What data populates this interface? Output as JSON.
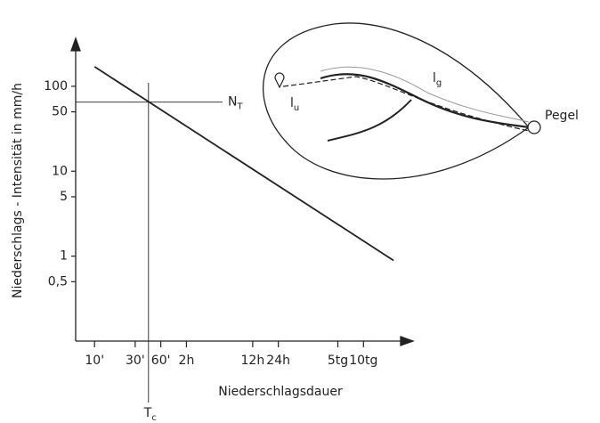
{
  "chart_data": {
    "type": "line",
    "y_label": "Niederschlags - Intensität in mm/h",
    "x_label": "Niederschlagsdauer",
    "log_x": true,
    "log_y": true,
    "xlim": [
      6,
      50000
    ],
    "ylim": [
      0.1,
      350
    ],
    "xticks": [
      {
        "value": 10,
        "label": "10'"
      },
      {
        "value": 30,
        "label": "30'"
      },
      {
        "value": 60,
        "label": "60'"
      },
      {
        "value": 120,
        "label": "2h"
      },
      {
        "value": 720,
        "label": "12h"
      },
      {
        "value": 1440,
        "label": "24h"
      },
      {
        "value": 7200,
        "label": "5tg"
      },
      {
        "value": 14400,
        "label": "10tg"
      }
    ],
    "yticks": [
      {
        "value": 0.5,
        "label": "0,5"
      },
      1,
      5,
      10,
      50,
      100
    ],
    "series": [
      {
        "color": "#222222",
        "x": [
          10,
          32500
        ],
        "values": [
          170,
          0.89
        ]
      }
    ],
    "reference_x": {
      "value": 43,
      "label": "T",
      "sub": "c"
    },
    "reference_y": {
      "value": 65,
      "label": "N",
      "sub": "T"
    }
  },
  "inset": {
    "gauge": "Pegel",
    "lg": {
      "text": "l",
      "sub": "g"
    },
    "lu": {
      "text": "l",
      "sub": "u"
    }
  }
}
